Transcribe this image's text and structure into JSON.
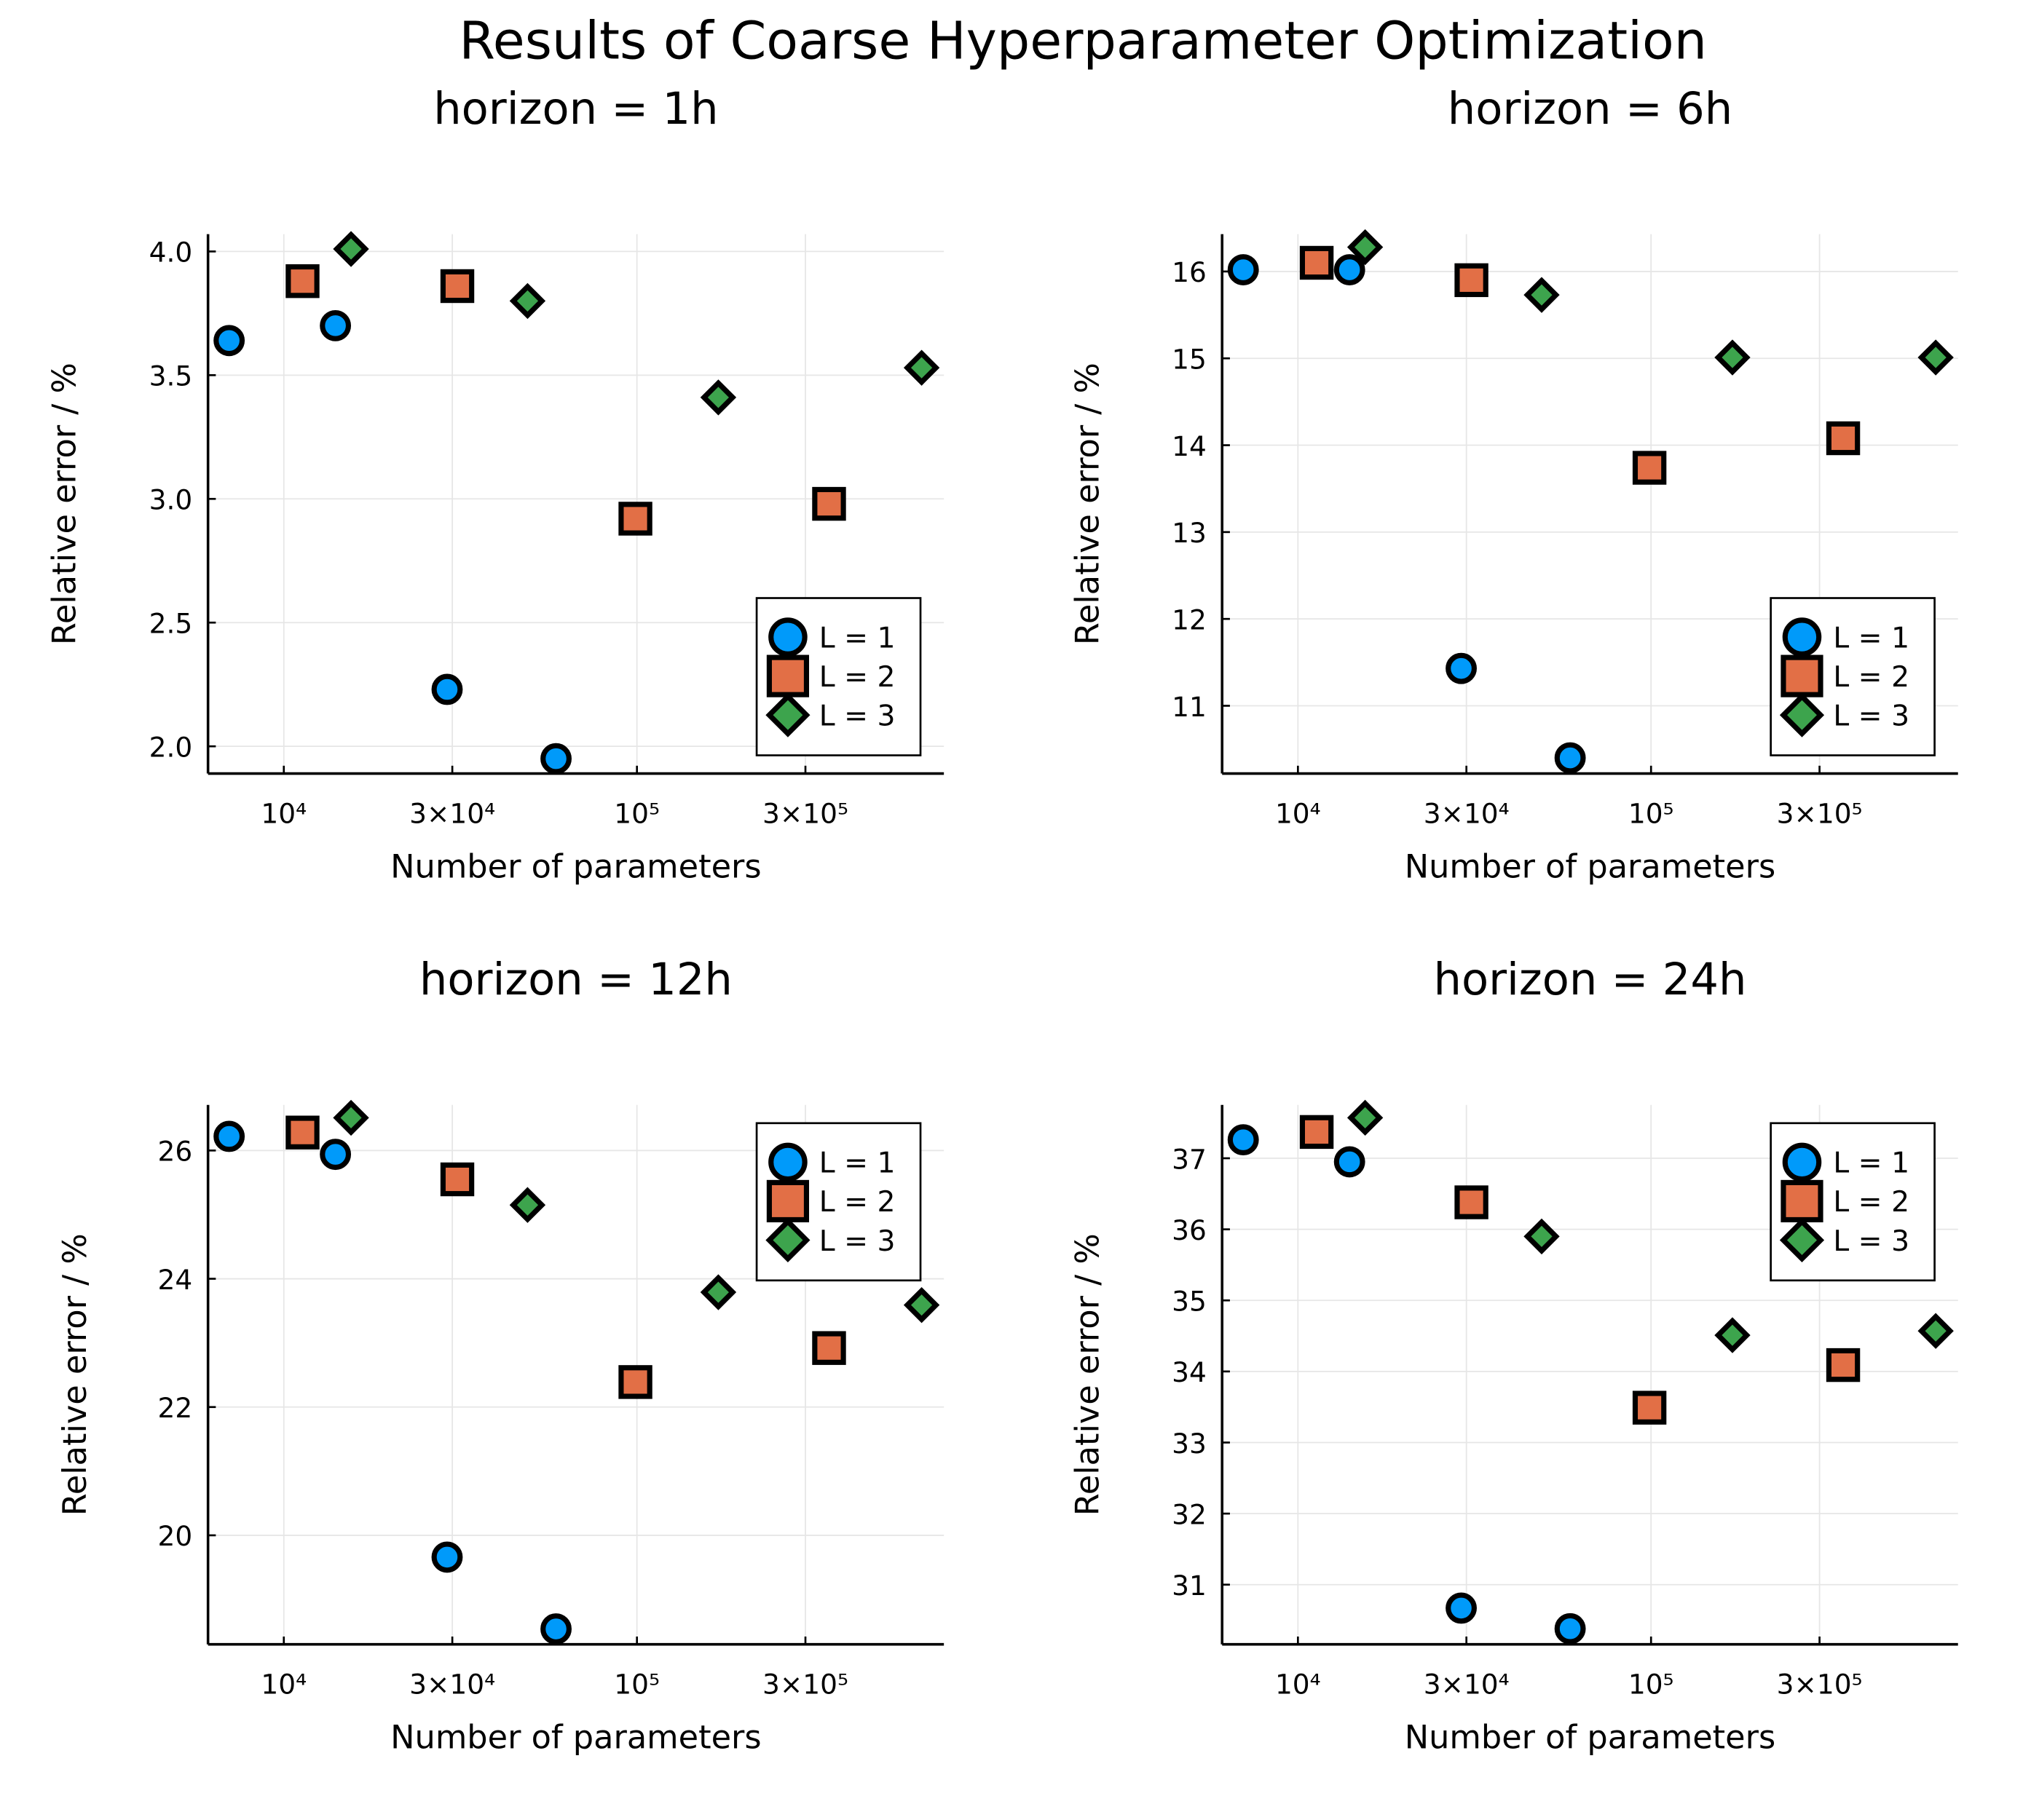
{
  "title": "Results of Coarse Hyperparameter Optimization",
  "colors": {
    "L = 1": "#009AFA",
    "L = 2": "#E26F46",
    "L = 3": "#3DA44D"
  },
  "chart_data": [
    {
      "type": "scatter",
      "title": "horizon = 1h",
      "xlabel": "Number of parameters",
      "ylabel": "Relative error / %",
      "xscale": "log",
      "xlim": [
        6100,
        740000
      ],
      "ylim": [
        1.89,
        4.07
      ],
      "xticks": [
        10000,
        30000,
        100000,
        300000
      ],
      "xtick_labels": [
        "10⁴",
        "3×10⁴",
        "10⁵",
        "3×10⁵"
      ],
      "yticks": [
        2.0,
        2.5,
        3.0,
        3.5,
        4.0
      ],
      "ytick_labels": [
        "2.0",
        "2.5",
        "3.0",
        "3.5",
        "4.0"
      ],
      "grid": true,
      "legend": "bottom-right",
      "series": [
        {
          "name": "L = 1",
          "marker": "circle",
          "x": [
            7000,
            14000,
            29000,
            59000
          ],
          "y": [
            3.64,
            3.7,
            2.23,
            1.95
          ]
        },
        {
          "name": "L = 2",
          "marker": "square",
          "x": [
            11300,
            31000,
            99000,
            350000
          ],
          "y": [
            3.88,
            3.86,
            2.92,
            2.98
          ]
        },
        {
          "name": "L = 3",
          "marker": "diamond",
          "x": [
            15500,
            49000,
            170000,
            640000
          ],
          "y": [
            4.01,
            3.8,
            3.41,
            3.53
          ]
        }
      ]
    },
    {
      "type": "scatter",
      "title": "horizon = 6h",
      "xlabel": "Number of parameters",
      "ylabel": "Relative error / %",
      "xscale": "log",
      "xlim": [
        6100,
        740000
      ],
      "ylim": [
        10.22,
        16.43
      ],
      "xticks": [
        10000,
        30000,
        100000,
        300000
      ],
      "xtick_labels": [
        "10⁴",
        "3×10⁴",
        "10⁵",
        "3×10⁵"
      ],
      "yticks": [
        11,
        12,
        13,
        14,
        15,
        16
      ],
      "ytick_labels": [
        "11",
        "12",
        "13",
        "14",
        "15",
        "16"
      ],
      "grid": true,
      "legend": "bottom-right",
      "series": [
        {
          "name": "L = 1",
          "marker": "circle",
          "x": [
            7000,
            14000,
            29000,
            59000
          ],
          "y": [
            16.02,
            16.02,
            11.43,
            10.4
          ]
        },
        {
          "name": "L = 2",
          "marker": "square",
          "x": [
            11300,
            31000,
            99000,
            350000
          ],
          "y": [
            16.1,
            15.9,
            13.74,
            14.08
          ]
        },
        {
          "name": "L = 3",
          "marker": "diamond",
          "x": [
            15500,
            49000,
            170000,
            640000
          ],
          "y": [
            16.28,
            15.73,
            15.01,
            15.01
          ]
        }
      ]
    },
    {
      "type": "scatter",
      "title": "horizon = 12h",
      "xlabel": "Number of parameters",
      "ylabel": "Relative error / %",
      "xscale": "log",
      "xlim": [
        6100,
        740000
      ],
      "ylim": [
        18.3,
        26.71
      ],
      "xticks": [
        10000,
        30000,
        100000,
        300000
      ],
      "xtick_labels": [
        "10⁴",
        "3×10⁴",
        "10⁵",
        "3×10⁵"
      ],
      "yticks": [
        20,
        22,
        24,
        26
      ],
      "ytick_labels": [
        "20",
        "22",
        "24",
        "26"
      ],
      "grid": true,
      "legend": "top-right",
      "series": [
        {
          "name": "L = 1",
          "marker": "circle",
          "x": [
            7000,
            14000,
            29000,
            59000
          ],
          "y": [
            26.22,
            25.94,
            19.66,
            18.54
          ]
        },
        {
          "name": "L = 2",
          "marker": "square",
          "x": [
            11300,
            31000,
            99000,
            350000
          ],
          "y": [
            26.28,
            25.55,
            22.39,
            22.92
          ]
        },
        {
          "name": "L = 3",
          "marker": "diamond",
          "x": [
            15500,
            49000,
            170000,
            640000
          ],
          "y": [
            26.51,
            25.15,
            23.79,
            23.59
          ]
        }
      ]
    },
    {
      "type": "scatter",
      "title": "horizon = 24h",
      "xlabel": "Number of parameters",
      "ylabel": "Relative error / %",
      "xscale": "log",
      "xlim": [
        6100,
        740000
      ],
      "ylim": [
        30.16,
        37.75
      ],
      "xticks": [
        10000,
        30000,
        100000,
        300000
      ],
      "xtick_labels": [
        "10⁴",
        "3×10⁴",
        "10⁵",
        "3×10⁵"
      ],
      "yticks": [
        31,
        32,
        33,
        34,
        35,
        36,
        37
      ],
      "ytick_labels": [
        "31",
        "32",
        "33",
        "34",
        "35",
        "36",
        "37"
      ],
      "grid": true,
      "legend": "top-right",
      "series": [
        {
          "name": "L = 1",
          "marker": "circle",
          "x": [
            7000,
            14000,
            29000,
            59000
          ],
          "y": [
            37.26,
            36.95,
            30.67,
            30.38
          ]
        },
        {
          "name": "L = 2",
          "marker": "square",
          "x": [
            11300,
            31000,
            99000,
            350000
          ],
          "y": [
            37.37,
            36.38,
            33.49,
            34.09
          ]
        },
        {
          "name": "L = 3",
          "marker": "diamond",
          "x": [
            15500,
            49000,
            170000,
            640000
          ],
          "y": [
            37.57,
            35.9,
            34.51,
            34.57
          ]
        }
      ]
    }
  ]
}
